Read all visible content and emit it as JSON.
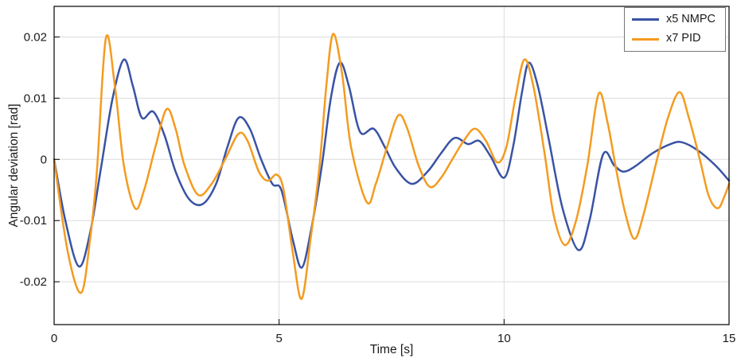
{
  "chart_data": {
    "type": "line",
    "title": "",
    "xlabel": "Time [s]",
    "ylabel": "Angular deviation [rad]",
    "xlim": [
      0,
      15
    ],
    "ylim": [
      -0.027,
      0.025
    ],
    "grid": true,
    "legend_position": "top-right",
    "xticks": {
      "values": [
        0,
        5,
        10,
        15
      ],
      "labels": [
        "0",
        "5",
        "10",
        "15"
      ]
    },
    "yticks": {
      "values": [
        -0.02,
        -0.01,
        0,
        0.01,
        0.02
      ],
      "labels": [
        "-0.02",
        "-0.01",
        "0",
        "0.01",
        "0.02"
      ]
    },
    "colors": {
      "grid": "#dcdcdc",
      "axis": "#000000",
      "text": "#1a1a1a"
    },
    "series": [
      {
        "name": "x5 NMPC",
        "color": "#3953A4",
        "points": [
          [
            0,
            0
          ],
          [
            0.25,
            -0.01
          ],
          [
            0.55,
            -0.0175
          ],
          [
            0.8,
            -0.012
          ],
          [
            1.05,
            -0.001
          ],
          [
            1.3,
            0.01
          ],
          [
            1.55,
            0.0163
          ],
          [
            1.75,
            0.012
          ],
          [
            1.95,
            0.0068
          ],
          [
            2.2,
            0.0078
          ],
          [
            2.45,
            0.004
          ],
          [
            2.7,
            -0.002
          ],
          [
            3.0,
            -0.0065
          ],
          [
            3.3,
            -0.0073
          ],
          [
            3.6,
            -0.004
          ],
          [
            3.85,
            0.002
          ],
          [
            4.1,
            0.0068
          ],
          [
            4.35,
            0.005
          ],
          [
            4.6,
            0.0
          ],
          [
            4.85,
            -0.004
          ],
          [
            5.05,
            -0.005
          ],
          [
            5.3,
            -0.013
          ],
          [
            5.5,
            -0.0177
          ],
          [
            5.7,
            -0.012
          ],
          [
            5.95,
            -0.001
          ],
          [
            6.15,
            0.01
          ],
          [
            6.35,
            0.0158
          ],
          [
            6.55,
            0.012
          ],
          [
            6.8,
            0.0045
          ],
          [
            7.1,
            0.005
          ],
          [
            7.35,
            0.002
          ],
          [
            7.6,
            -0.0015
          ],
          [
            7.95,
            -0.004
          ],
          [
            8.3,
            -0.002
          ],
          [
            8.6,
            0.001
          ],
          [
            8.9,
            0.0035
          ],
          [
            9.2,
            0.0025
          ],
          [
            9.45,
            0.003
          ],
          [
            9.7,
            0.0005
          ],
          [
            10.0,
            -0.003
          ],
          [
            10.2,
            0.002
          ],
          [
            10.4,
            0.011
          ],
          [
            10.55,
            0.0158
          ],
          [
            10.75,
            0.012
          ],
          [
            11.0,
            0.003
          ],
          [
            11.3,
            -0.008
          ],
          [
            11.65,
            -0.0148
          ],
          [
            11.9,
            -0.01
          ],
          [
            12.2,
            0.0008
          ],
          [
            12.45,
            -0.001
          ],
          [
            12.65,
            -0.002
          ],
          [
            12.9,
            -0.0012
          ],
          [
            13.3,
            0.001
          ],
          [
            13.7,
            0.0025
          ],
          [
            13.95,
            0.0028
          ],
          [
            14.3,
            0.0015
          ],
          [
            14.7,
            -0.001
          ],
          [
            15,
            -0.0035
          ]
        ]
      },
      {
        "name": "x7 PID",
        "color": "#F49B20",
        "points": [
          [
            0,
            0
          ],
          [
            0.3,
            -0.015
          ],
          [
            0.6,
            -0.0218
          ],
          [
            0.8,
            -0.013
          ],
          [
            0.95,
            -0.002
          ],
          [
            1.15,
            0.0198
          ],
          [
            1.35,
            0.012
          ],
          [
            1.55,
            -0.001
          ],
          [
            1.8,
            -0.008
          ],
          [
            2.0,
            -0.005
          ],
          [
            2.25,
            0.002
          ],
          [
            2.5,
            0.0082
          ],
          [
            2.7,
            0.005
          ],
          [
            2.9,
            -0.001
          ],
          [
            3.2,
            -0.0058
          ],
          [
            3.5,
            -0.004
          ],
          [
            3.8,
            0.0
          ],
          [
            4.1,
            0.0042
          ],
          [
            4.3,
            0.003
          ],
          [
            4.55,
            -0.002
          ],
          [
            4.75,
            -0.0035
          ],
          [
            4.95,
            -0.0025
          ],
          [
            5.1,
            -0.005
          ],
          [
            5.3,
            -0.015
          ],
          [
            5.5,
            -0.0228
          ],
          [
            5.7,
            -0.013
          ],
          [
            5.9,
            -0.001
          ],
          [
            6.05,
            0.012
          ],
          [
            6.2,
            0.0205
          ],
          [
            6.4,
            0.014
          ],
          [
            6.6,
            0.002
          ],
          [
            6.95,
            -0.007
          ],
          [
            7.15,
            -0.004
          ],
          [
            7.4,
            0.002
          ],
          [
            7.65,
            0.0072
          ],
          [
            7.85,
            0.005
          ],
          [
            8.1,
            -0.001
          ],
          [
            8.35,
            -0.0045
          ],
          [
            8.6,
            -0.003
          ],
          [
            8.85,
            0.0
          ],
          [
            9.1,
            0.003
          ],
          [
            9.35,
            0.005
          ],
          [
            9.6,
            0.003
          ],
          [
            9.85,
            -0.0005
          ],
          [
            10.05,
            0.002
          ],
          [
            10.25,
            0.01
          ],
          [
            10.45,
            0.0163
          ],
          [
            10.65,
            0.012
          ],
          [
            10.9,
            0.001
          ],
          [
            11.1,
            -0.009
          ],
          [
            11.35,
            -0.014
          ],
          [
            11.6,
            -0.01
          ],
          [
            11.85,
            -0.001
          ],
          [
            12.1,
            0.0107
          ],
          [
            12.3,
            0.006
          ],
          [
            12.5,
            -0.002
          ],
          [
            12.7,
            -0.009
          ],
          [
            12.9,
            -0.013
          ],
          [
            13.1,
            -0.009
          ],
          [
            13.4,
            0.0
          ],
          [
            13.65,
            0.007
          ],
          [
            13.9,
            0.011
          ],
          [
            14.1,
            0.007
          ],
          [
            14.35,
            0.0
          ],
          [
            14.55,
            -0.006
          ],
          [
            14.75,
            -0.008
          ],
          [
            14.9,
            -0.006
          ],
          [
            15,
            -0.004
          ]
        ]
      }
    ]
  }
}
